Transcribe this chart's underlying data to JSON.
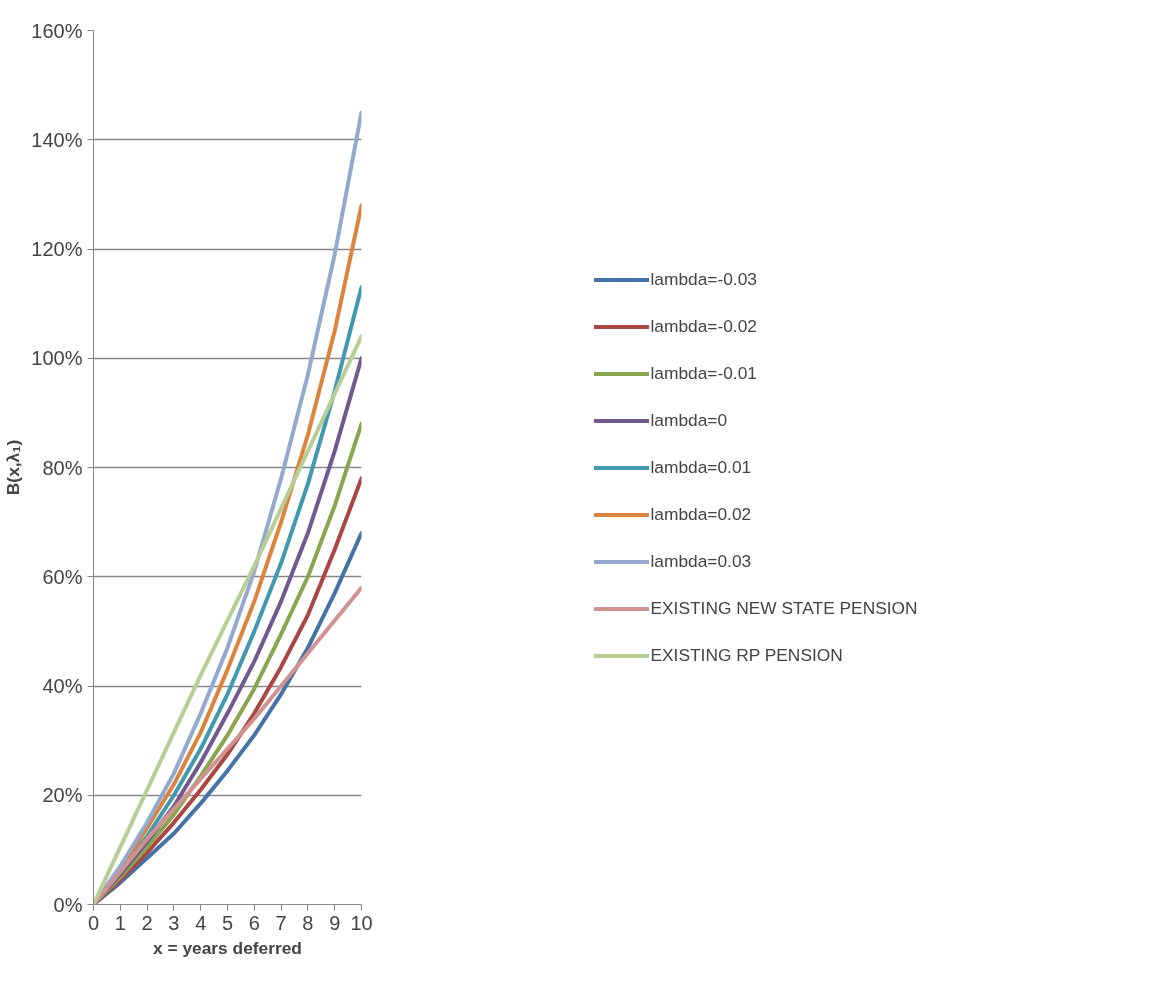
{
  "chart_data": {
    "type": "line",
    "xlabel": "x = years deferred",
    "ylabel": "B(x,λ₁)",
    "x": [
      0,
      1,
      2,
      3,
      4,
      5,
      6,
      7,
      8,
      9,
      10
    ],
    "xlim": [
      0,
      10
    ],
    "xticks": [
      0,
      1,
      2,
      3,
      4,
      5,
      6,
      7,
      8,
      9,
      10
    ],
    "ylim": [
      0,
      160
    ],
    "yticks": [
      {
        "value": 0,
        "label": "0%"
      },
      {
        "value": 20,
        "label": "20%"
      },
      {
        "value": 40,
        "label": "40%"
      },
      {
        "value": 60,
        "label": "60%"
      },
      {
        "value": 80,
        "label": "80%"
      },
      {
        "value": 100,
        "label": "100%"
      },
      {
        "value": 120,
        "label": "120%"
      },
      {
        "value": 140,
        "label": "140%"
      },
      {
        "value": 160,
        "label": "160%"
      }
    ],
    "grid": "y",
    "legend": "right",
    "marker": "none",
    "line_style": "solid",
    "series": [
      {
        "name": "lambda=-0.03",
        "color": "#4572a7",
        "values": [
          0,
          4,
          8.5,
          13,
          18.5,
          24.5,
          31,
          38.5,
          47,
          57,
          68
        ]
      },
      {
        "name": "lambda=-0.02",
        "color": "#aa4643",
        "values": [
          0,
          4.5,
          9.5,
          15,
          21,
          27.5,
          35,
          43.5,
          53,
          65,
          78
        ]
      },
      {
        "name": "lambda=-0.01",
        "color": "#89a54e",
        "values": [
          0,
          5,
          10.5,
          16.5,
          23.5,
          31,
          39.5,
          49.5,
          60,
          73,
          88
        ]
      },
      {
        "name": "lambda=0",
        "color": "#71588f",
        "values": [
          0,
          5.5,
          11.5,
          18,
          26,
          35,
          44.5,
          55.5,
          68,
          83,
          100
        ]
      },
      {
        "name": "lambda=0.01",
        "color": "#4198af",
        "values": [
          0,
          6,
          12.5,
          20,
          28.5,
          38.5,
          50,
          62.5,
          77,
          94,
          113
        ]
      },
      {
        "name": "lambda=0.02",
        "color": "#db843d",
        "values": [
          0,
          6.5,
          14,
          22,
          31.5,
          43,
          55.5,
          70,
          86,
          105,
          128
        ]
      },
      {
        "name": "lambda=0.03",
        "color": "#93a9cf",
        "values": [
          0,
          7,
          15,
          24,
          35,
          47,
          61,
          78,
          97,
          119,
          145
        ]
      },
      {
        "name": "EXISTING NEW STATE PENSION",
        "color": "#d19392",
        "values": [
          0,
          6,
          12,
          17.5,
          23,
          28.5,
          34,
          40,
          46,
          52,
          58
        ]
      },
      {
        "name": "EXISTING RP PENSION",
        "color": "#b9cd96",
        "values": [
          0,
          10.5,
          21,
          31.5,
          42,
          52,
          62,
          72.5,
          83,
          93.5,
          104
        ]
      }
    ]
  }
}
